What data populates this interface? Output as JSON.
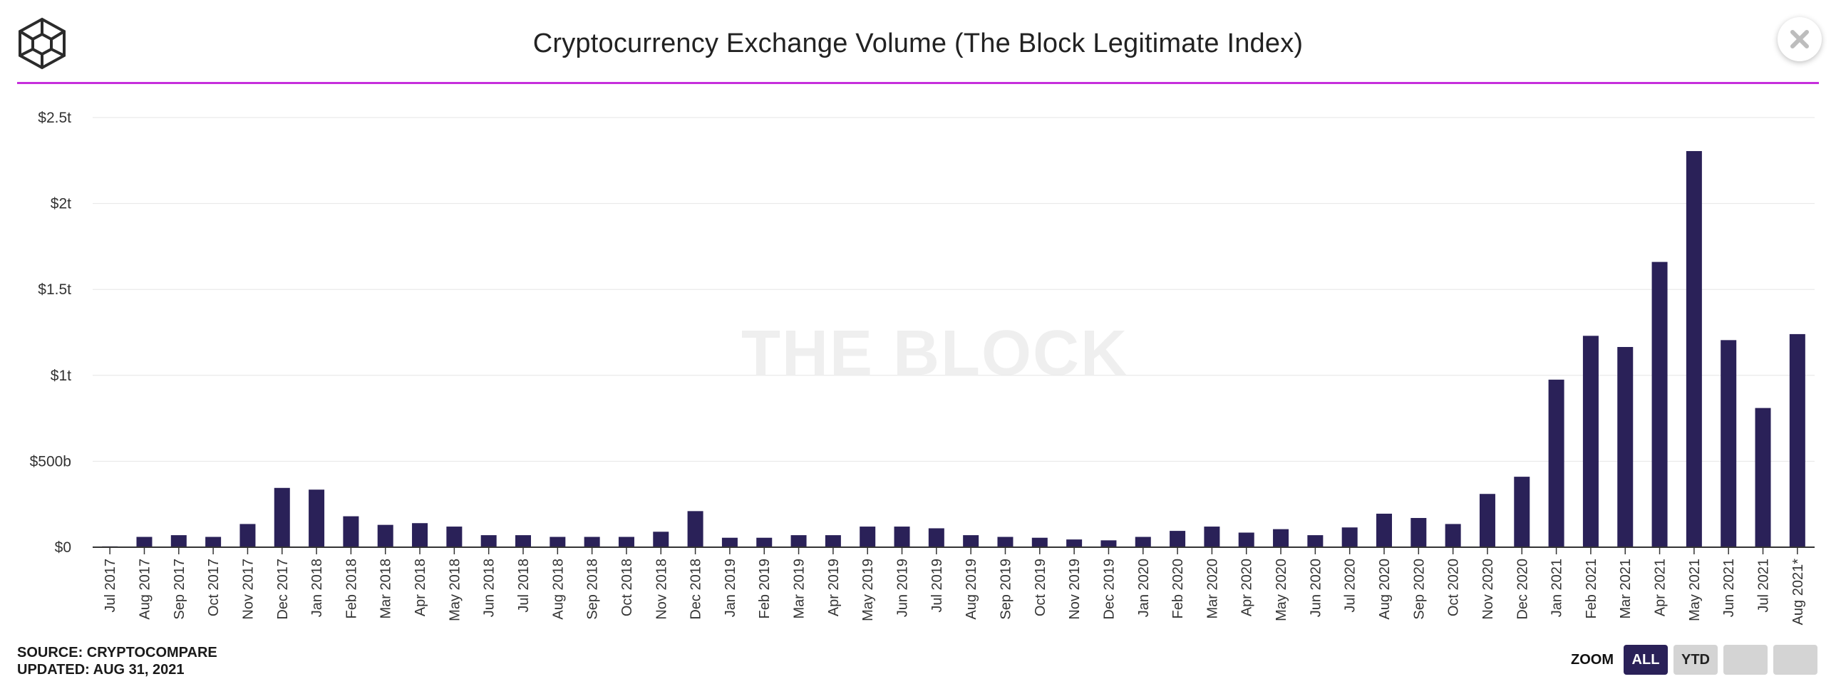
{
  "header": {
    "title": "Cryptocurrency Exchange Volume (The Block Legitimate Index)",
    "logo_icon": "the-block-cube-logo-icon",
    "close_icon": "close-icon",
    "rule_color": "#c62edc"
  },
  "watermark": "THE BLOCK",
  "footer": {
    "source": "SOURCE: CRYPTOCOMPARE",
    "updated": "UPDATED: AUG 31, 2021"
  },
  "zoom": {
    "label": "ZOOM",
    "buttons": [
      "ALL",
      "YTD",
      "",
      ""
    ],
    "active": "ALL"
  },
  "colors": {
    "bar": "#2a2158",
    "active_button": "#2a2158",
    "button": "#d4d4d4"
  },
  "chart_data": {
    "type": "bar",
    "title": "Cryptocurrency Exchange Volume (The Block Legitimate Index)",
    "xlabel": "",
    "ylabel": "",
    "ylim": [
      0,
      2500
    ],
    "y_unit": "billions USD",
    "yticks": [
      {
        "value": 0,
        "label": "$0"
      },
      {
        "value": 500,
        "label": "$500b"
      },
      {
        "value": 1000,
        "label": "$1t"
      },
      {
        "value": 1500,
        "label": "$1.5t"
      },
      {
        "value": 2000,
        "label": "$2t"
      },
      {
        "value": 2500,
        "label": "$2.5t"
      }
    ],
    "grid": true,
    "legend": "none",
    "categories": [
      "Jul 2017",
      "Aug 2017",
      "Sep 2017",
      "Oct 2017",
      "Nov 2017",
      "Dec 2017",
      "Jan 2018",
      "Feb 2018",
      "Mar 2018",
      "Apr 2018",
      "May 2018",
      "Jun 2018",
      "Jul 2018",
      "Aug 2018",
      "Sep 2018",
      "Oct 2018",
      "Nov 2018",
      "Dec 2018",
      "Jan 2019",
      "Feb 2019",
      "Mar 2019",
      "Apr 2019",
      "May 2019",
      "Jun 2019",
      "Jul 2019",
      "Aug 2019",
      "Sep 2019",
      "Oct 2019",
      "Nov 2019",
      "Dec 2019",
      "Jan 2020",
      "Feb 2020",
      "Mar 2020",
      "Apr 2020",
      "May 2020",
      "Jun 2020",
      "Jul 2020",
      "Aug 2020",
      "Sep 2020",
      "Oct 2020",
      "Nov 2020",
      "Dec 2020",
      "Jan 2021",
      "Feb 2021",
      "Mar 2021",
      "Apr 2021",
      "May 2021",
      "Jun 2021",
      "Jul 2021",
      "Aug 2021*"
    ],
    "values": [
      5,
      60,
      70,
      60,
      135,
      345,
      335,
      180,
      130,
      140,
      120,
      70,
      70,
      60,
      60,
      60,
      90,
      210,
      55,
      55,
      70,
      70,
      120,
      120,
      110,
      70,
      60,
      55,
      45,
      40,
      60,
      95,
      120,
      85,
      105,
      70,
      115,
      195,
      170,
      135,
      310,
      410,
      975,
      1230,
      1165,
      1660,
      2305,
      1205,
      810,
      1240
    ]
  }
}
